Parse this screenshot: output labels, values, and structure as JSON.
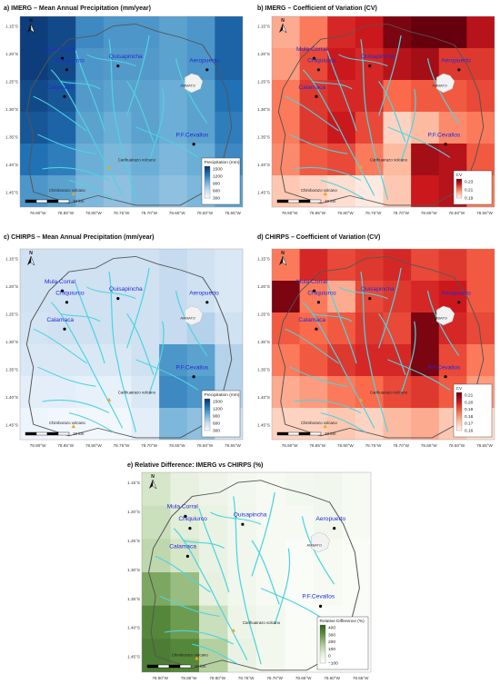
{
  "map": {
    "y_ticks": [
      "1.15°S",
      "1.20°S",
      "1.25°S",
      "1.30°S",
      "1.35°S",
      "1.40°S",
      "1.45°S"
    ],
    "x_ticks_a": [
      "78.90°W",
      "78.85°W",
      "78.80°W",
      "78.75°W",
      "78.70°W",
      "78.65°W",
      "78.60°W",
      "78.55°W"
    ],
    "x_ticks_b": [
      "78.90°W",
      "78.85°W",
      "78.80°W",
      "78.75°W",
      "78.70°W",
      "78.65°W",
      "78.60°W",
      "78.55°W"
    ],
    "cities": [
      "Mula Corral",
      "Chiquiurco",
      "Quisapincha",
      "Aeropuerto",
      "Calamaca",
      "P.F.Cevallos"
    ],
    "volcanoes": [
      "Carihuairazo volcano",
      "Chimborazo volcano"
    ],
    "ambato_label": "AMBATO",
    "scale_label": "10 km",
    "north_label": "N"
  },
  "panels": [
    {
      "title": "a) IMERG – Mean Annual Precipitation (mm/year)",
      "legend_title": "Precipitation (mm)",
      "legend_labels": [
        "1500",
        "1200",
        "900",
        "600",
        "300"
      ],
      "ramp": [
        "#08306b",
        "#2171b5",
        "#6baed6",
        "#c6dbef",
        "#f7fbff"
      ]
    },
    {
      "title": "b) IMERG – Coefficient of Variation (CV)",
      "legend_title": "CV",
      "legend_labels": [
        "0.23",
        "0.21",
        "0.19"
      ],
      "ramp": [
        "#67000d",
        "#cb181d",
        "#fb6a4a",
        "#fcbba1",
        "#fff5f0"
      ]
    },
    {
      "title": "c) CHIRPS – Mean Annual Precipitation (mm/year)",
      "legend_title": "Precipitation (mm)",
      "legend_labels": [
        "1500",
        "1200",
        "900",
        "600",
        "300"
      ],
      "ramp": [
        "#08306b",
        "#2171b5",
        "#6baed6",
        "#c6dbef",
        "#f7fbff"
      ]
    },
    {
      "title": "d) CHIRPS – Coefficient of Variation (CV)",
      "legend_title": "CV",
      "legend_labels": [
        "0.21",
        "0.20",
        "0.19",
        "0.18",
        "0.17",
        "0.16"
      ],
      "ramp": [
        "#67000d",
        "#cb181d",
        "#fb6a4a",
        "#fcbba1",
        "#fff5f0"
      ]
    },
    {
      "title": "e) Relative Difference: IMERG vs CHIRPS (%)",
      "legend_title": "Relative Difference (%)",
      "legend_labels": [
        "400",
        "300",
        "200",
        "100",
        "0",
        "−100"
      ],
      "ramp": [
        "#2e5e1e",
        "#5f9142",
        "#a7c88f",
        "#e2eed8",
        "#ffffff"
      ]
    }
  ],
  "colors": {
    "river": "#4fd3e0",
    "city_label": "#1f2bd6",
    "volcano": "#f4a21a",
    "boundary": "#555555"
  }
}
